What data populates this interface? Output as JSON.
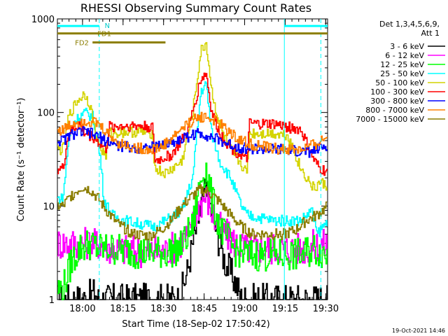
{
  "chart_data": {
    "type": "line",
    "title": "RHESSI Observing Summary Count Rates",
    "xlabel": "Start Time (18-Sep-02 17:50:42)",
    "ylabel": "Count Rate (s⁻¹ detector⁻¹)",
    "yscale": "log",
    "ylim": [
      1,
      1000
    ],
    "xlim": [
      0,
      100
    ],
    "x_ticks": [
      {
        "label": "18:00",
        "t": 9.3
      },
      {
        "label": "18:15",
        "t": 24.3
      },
      {
        "label": "18:30",
        "t": 39.3
      },
      {
        "label": "18:45",
        "t": 54.3
      },
      {
        "label": "19:00",
        "t": 69.3
      },
      {
        "label": "19:15",
        "t": 84.3
      },
      {
        "label": "19:30",
        "t": 99.3
      }
    ],
    "y_ticks": [
      {
        "label": "1",
        "v": 1
      },
      {
        "label": "10",
        "v": 10
      },
      {
        "label": "100",
        "v": 100
      },
      {
        "label": "1000",
        "v": 1000
      }
    ],
    "legend_header": [
      "Det 1,3,4,5,6,9,",
      "Att 1"
    ],
    "series": [
      {
        "name": "3 - 6 keV",
        "color": "#000000",
        "points": [
          [
            2,
            1
          ],
          [
            10,
            1
          ],
          [
            14,
            1.2
          ],
          [
            15,
            1
          ],
          [
            45,
            1
          ],
          [
            48,
            2
          ],
          [
            50,
            4
          ],
          [
            52,
            7
          ],
          [
            54,
            13
          ],
          [
            55,
            15
          ],
          [
            57,
            9
          ],
          [
            59,
            5
          ],
          [
            62,
            2.5
          ],
          [
            66,
            1.5
          ],
          [
            68,
            1
          ],
          [
            100,
            1
          ]
        ]
      },
      {
        "name": "6 - 12 keV",
        "color": "#ff00ff",
        "points": [
          [
            4,
            4
          ],
          [
            12,
            4
          ],
          [
            15,
            4
          ],
          [
            20,
            3.5
          ],
          [
            30,
            3.3
          ],
          [
            40,
            3.3
          ],
          [
            45,
            4
          ],
          [
            49,
            5
          ],
          [
            52,
            10
          ],
          [
            55,
            13
          ],
          [
            58,
            7
          ],
          [
            62,
            5
          ],
          [
            66,
            4
          ],
          [
            70,
            3.5
          ],
          [
            80,
            3.5
          ],
          [
            90,
            3.5
          ],
          [
            100,
            4
          ]
        ]
      },
      {
        "name": "12 - 25 keV",
        "color": "#00ff00",
        "points": [
          [
            2,
            1.3
          ],
          [
            5,
            2.5
          ],
          [
            8,
            3.5
          ],
          [
            12,
            4
          ],
          [
            15,
            3.5
          ],
          [
            20,
            3.5
          ],
          [
            30,
            3.2
          ],
          [
            40,
            3.2
          ],
          [
            45,
            3.5
          ],
          [
            50,
            6
          ],
          [
            53,
            20
          ],
          [
            55,
            25
          ],
          [
            57,
            12
          ],
          [
            60,
            6
          ],
          [
            65,
            3.5
          ],
          [
            70,
            3
          ],
          [
            80,
            3
          ],
          [
            90,
            3
          ],
          [
            95,
            3.5
          ],
          [
            100,
            3
          ]
        ]
      },
      {
        "name": "25 - 50 keV",
        "color": "#00ffff",
        "points": [
          [
            2,
            12
          ],
          [
            4,
            50
          ],
          [
            6,
            80
          ],
          [
            10,
            100
          ],
          [
            13,
            90
          ],
          [
            16,
            30
          ],
          [
            17,
            12
          ],
          [
            20,
            8
          ],
          [
            25,
            7
          ],
          [
            30,
            6.5
          ],
          [
            36,
            6
          ],
          [
            40,
            7
          ],
          [
            46,
            9
          ],
          [
            50,
            20
          ],
          [
            53,
            170
          ],
          [
            55,
            200
          ],
          [
            57,
            60
          ],
          [
            60,
            30
          ],
          [
            64,
            20
          ],
          [
            68,
            10
          ],
          [
            70,
            8
          ],
          [
            80,
            7
          ],
          [
            90,
            7
          ],
          [
            94,
            9
          ],
          [
            96,
            5
          ],
          [
            100,
            7
          ]
        ]
      },
      {
        "name": "50 - 100 keV",
        "color": "#d4d400",
        "points": [
          [
            2,
            40
          ],
          [
            4,
            90
          ],
          [
            7,
            130
          ],
          [
            10,
            160
          ],
          [
            12,
            120
          ],
          [
            14,
            60
          ],
          [
            16,
            40
          ],
          [
            18,
            35
          ],
          [
            19,
            60
          ],
          [
            25,
            62
          ],
          [
            30,
            62
          ],
          [
            35,
            60
          ],
          [
            36,
            25
          ],
          [
            40,
            22
          ],
          [
            46,
            30
          ],
          [
            50,
            100
          ],
          [
            53,
            450
          ],
          [
            55,
            550
          ],
          [
            57,
            170
          ],
          [
            60,
            70
          ],
          [
            64,
            40
          ],
          [
            68,
            28
          ],
          [
            70,
            22
          ],
          [
            71,
            60
          ],
          [
            80,
            60
          ],
          [
            85,
            58
          ],
          [
            90,
            25
          ],
          [
            95,
            15
          ],
          [
            97,
            18
          ],
          [
            100,
            16
          ]
        ]
      },
      {
        "name": "100 - 300 keV",
        "color": "#ff0000",
        "points": [
          [
            2,
            25
          ],
          [
            4,
            60
          ],
          [
            8,
            75
          ],
          [
            10,
            60
          ],
          [
            13,
            55
          ],
          [
            16,
            45
          ],
          [
            18,
            40
          ],
          [
            19,
            70
          ],
          [
            25,
            72
          ],
          [
            30,
            72
          ],
          [
            35,
            70
          ],
          [
            36,
            30
          ],
          [
            42,
            35
          ],
          [
            48,
            60
          ],
          [
            53,
            230
          ],
          [
            55,
            260
          ],
          [
            57,
            100
          ],
          [
            60,
            60
          ],
          [
            64,
            42
          ],
          [
            68,
            35
          ],
          [
            70,
            30
          ],
          [
            71,
            75
          ],
          [
            80,
            75
          ],
          [
            85,
            70
          ],
          [
            90,
            65
          ],
          [
            95,
            30
          ],
          [
            97,
            25
          ],
          [
            100,
            23
          ]
        ]
      },
      {
        "name": "300 - 800 keV",
        "color": "#0000ff",
        "points": [
          [
            2,
            50
          ],
          [
            5,
            58
          ],
          [
            9,
            62
          ],
          [
            12,
            60
          ],
          [
            15,
            55
          ],
          [
            18,
            50
          ],
          [
            22,
            44
          ],
          [
            28,
            42
          ],
          [
            34,
            42
          ],
          [
            38,
            44
          ],
          [
            42,
            48
          ],
          [
            46,
            52
          ],
          [
            50,
            58
          ],
          [
            53,
            60
          ],
          [
            56,
            56
          ],
          [
            60,
            50
          ],
          [
            64,
            45
          ],
          [
            68,
            42
          ],
          [
            72,
            41
          ],
          [
            78,
            40
          ],
          [
            84,
            40
          ],
          [
            90,
            38
          ],
          [
            94,
            38
          ],
          [
            100,
            45
          ]
        ]
      },
      {
        "name": "800 - 7000 keV",
        "color": "#ff8000",
        "points": [
          [
            2,
            65
          ],
          [
            6,
            78
          ],
          [
            10,
            82
          ],
          [
            14,
            78
          ],
          [
            18,
            62
          ],
          [
            22,
            48
          ],
          [
            28,
            42
          ],
          [
            34,
            40
          ],
          [
            38,
            42
          ],
          [
            42,
            52
          ],
          [
            46,
            68
          ],
          [
            50,
            82
          ],
          [
            53,
            90
          ],
          [
            56,
            88
          ],
          [
            60,
            75
          ],
          [
            64,
            60
          ],
          [
            68,
            50
          ],
          [
            72,
            45
          ],
          [
            78,
            42
          ],
          [
            84,
            40
          ],
          [
            90,
            40
          ],
          [
            95,
            45
          ],
          [
            100,
            55
          ]
        ]
      },
      {
        "name": "7000 - 15000 keV",
        "color": "#8b7d00",
        "points": [
          [
            2,
            10
          ],
          [
            5,
            13
          ],
          [
            9,
            16
          ],
          [
            12,
            15
          ],
          [
            15,
            12
          ],
          [
            18,
            9
          ],
          [
            22,
            6.5
          ],
          [
            28,
            5
          ],
          [
            34,
            4.8
          ],
          [
            38,
            5.5
          ],
          [
            42,
            7
          ],
          [
            46,
            10
          ],
          [
            50,
            13
          ],
          [
            53,
            15
          ],
          [
            56,
            14
          ],
          [
            60,
            11
          ],
          [
            64,
            8
          ],
          [
            68,
            6
          ],
          [
            72,
            5
          ],
          [
            78,
            5
          ],
          [
            84,
            5
          ],
          [
            88,
            5.5
          ],
          [
            92,
            7
          ],
          [
            96,
            8
          ],
          [
            100,
            10
          ]
        ]
      }
    ],
    "annotations": [
      {
        "label": "N",
        "kind": "night"
      },
      {
        "label": "FD1",
        "kind": "fast-data"
      },
      {
        "label": "FD2",
        "kind": "fast-data"
      }
    ],
    "bars": {
      "night": [
        [
          0,
          15.5
        ],
        [
          84,
          100
        ]
      ],
      "fd1": [
        [
          0,
          100
        ]
      ],
      "fd2": [
        [
          13,
          40
        ]
      ]
    },
    "vlines": [
      {
        "t": 15.5,
        "style": "dashed"
      },
      {
        "t": 84,
        "style": "solid"
      },
      {
        "t": 97.5,
        "style": "dashed"
      }
    ],
    "footer": "19-Oct-2021 14:46"
  }
}
